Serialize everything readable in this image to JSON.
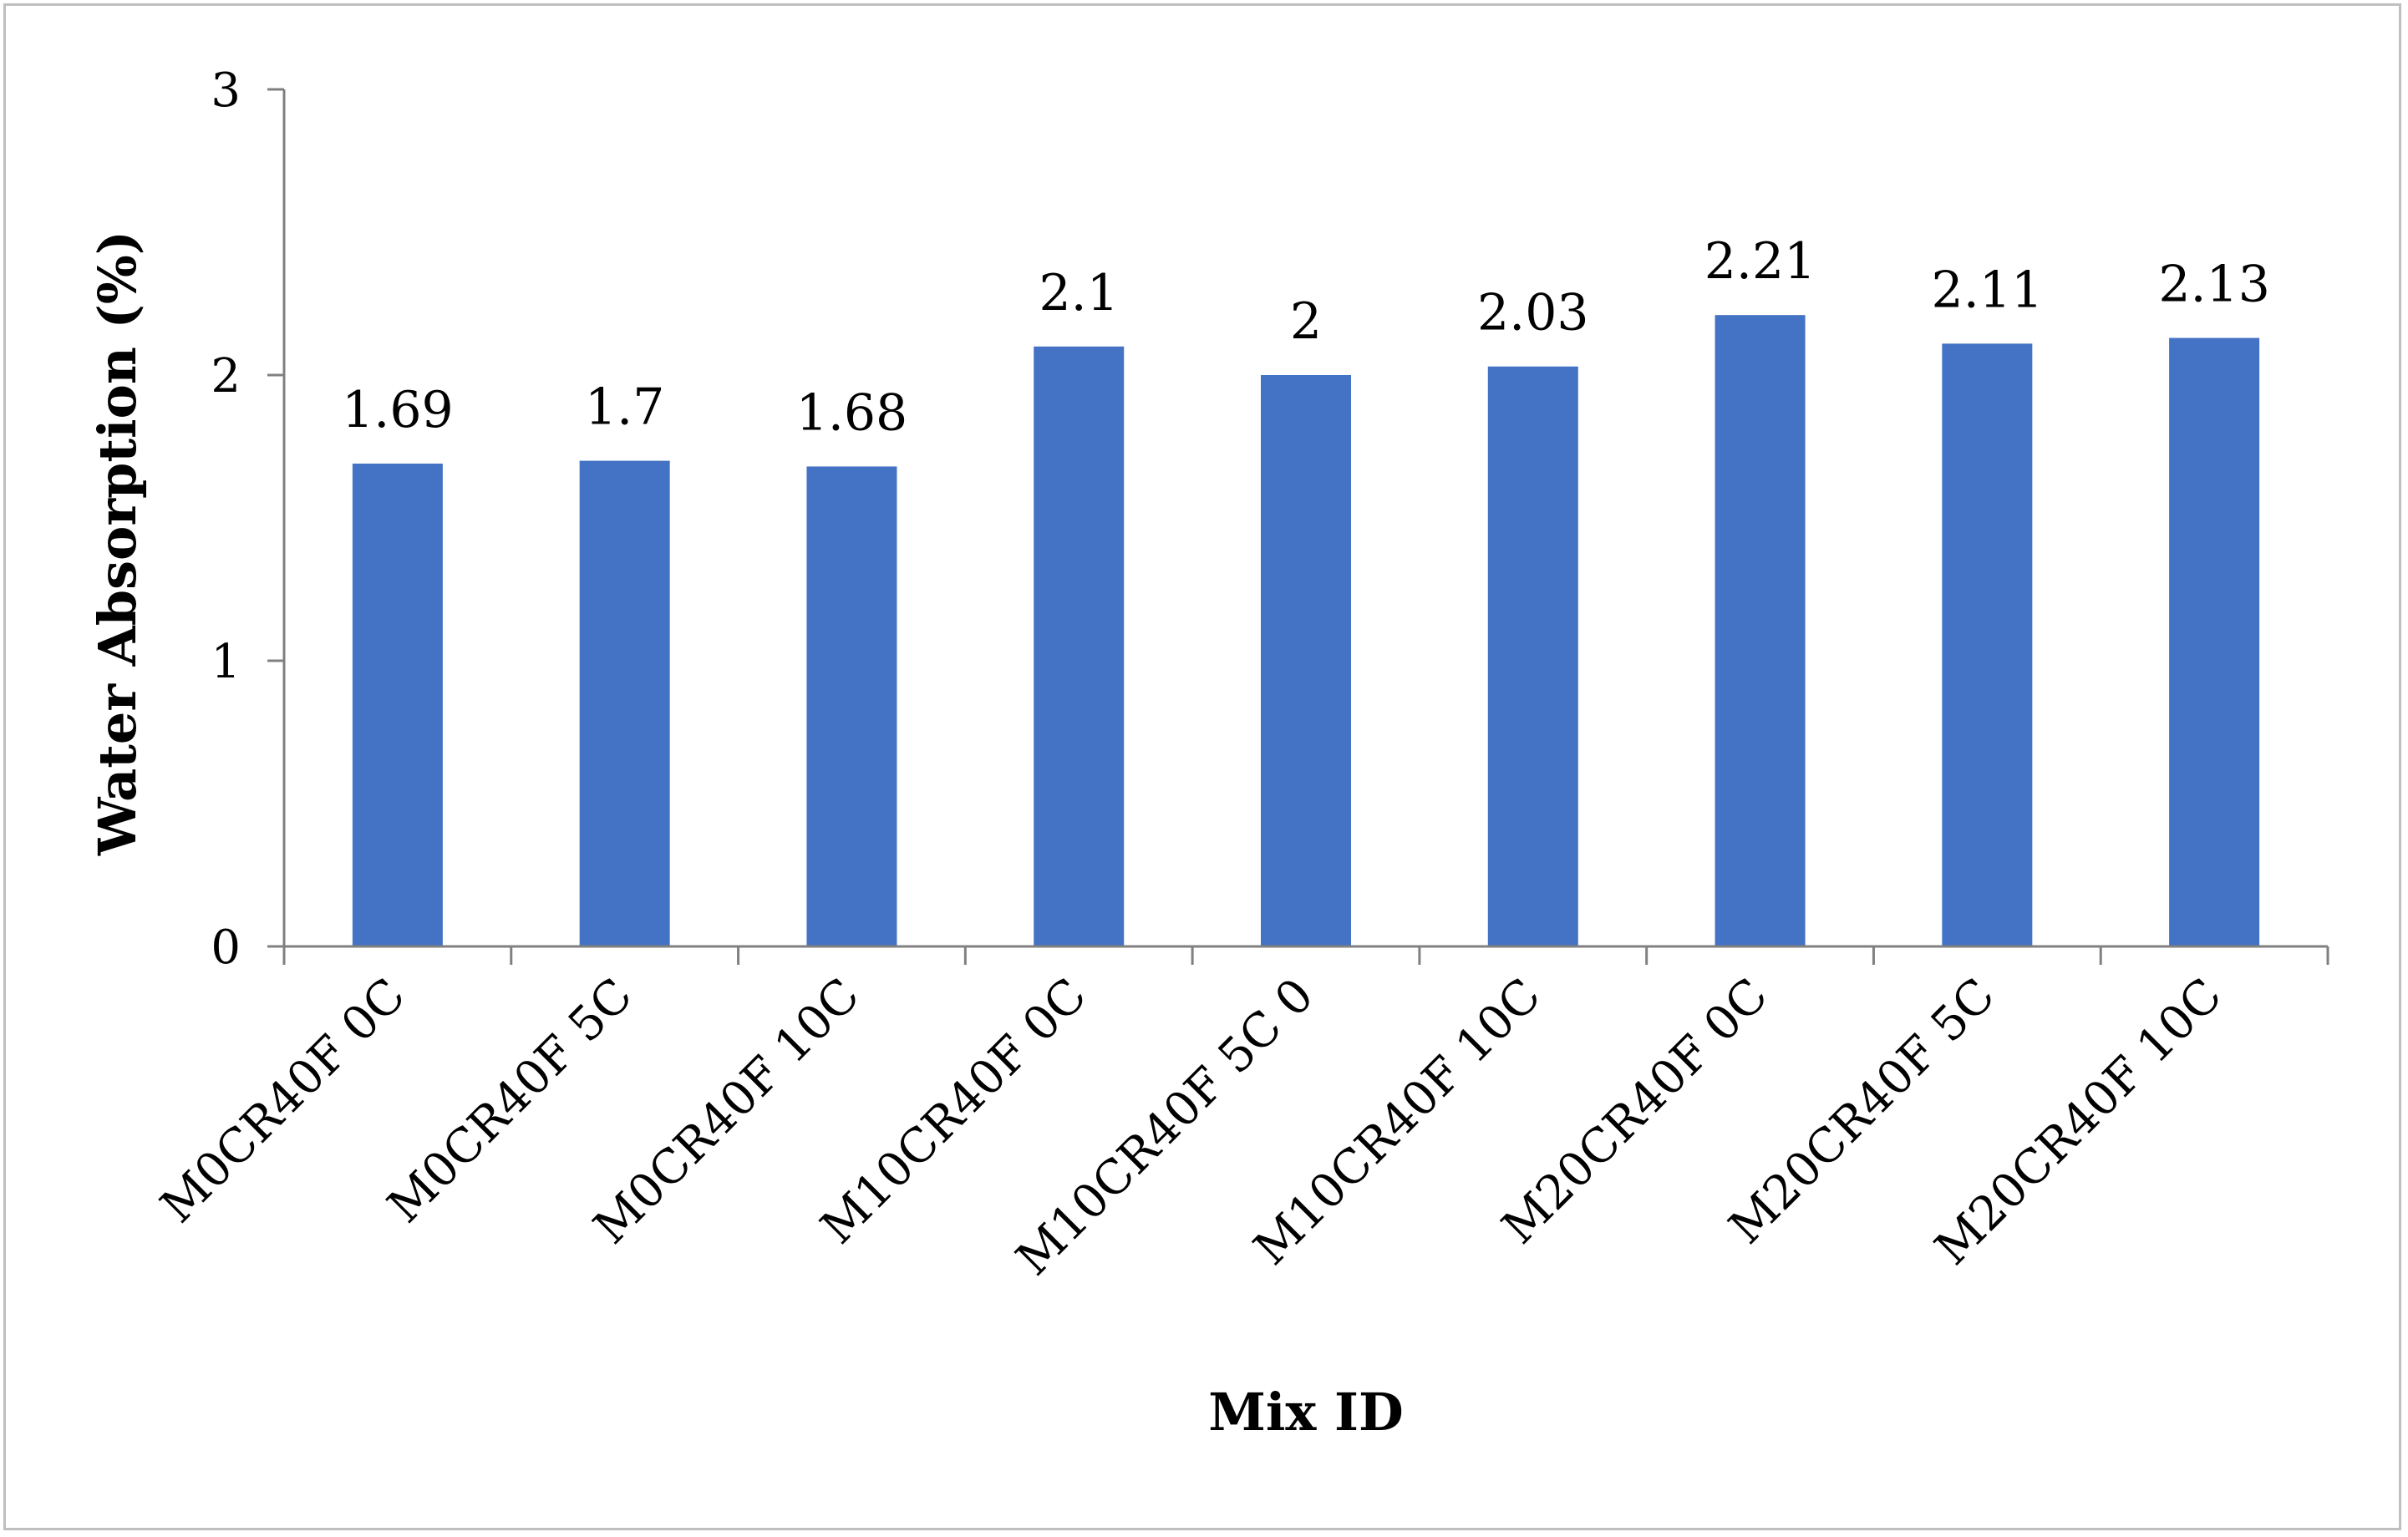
{
  "chart_data": {
    "type": "bar",
    "title": "",
    "xlabel": "Mix ID",
    "ylabel": "Water Absorption (%)",
    "categories": [
      "M0CR40F 0C",
      "M0CR40F 5C",
      "M0CR40F 10C",
      "M10CR40F 0C",
      "M10CR40F 5C 0",
      "M10CR40F 10C",
      "M20CR40F 0C",
      "M20CR40F 5C",
      "M20CR40F 10C"
    ],
    "values": [
      1.69,
      1.7,
      1.68,
      2.1,
      2,
      2.03,
      2.21,
      2.11,
      2.13
    ],
    "value_labels": [
      "1.69",
      "1.7",
      "1.68",
      "2.1",
      "2",
      "2.03",
      "2.21",
      "2.11",
      "2.13"
    ],
    "ylim": [
      0,
      3
    ],
    "yticks": [
      "0",
      "1",
      "2",
      "3"
    ],
    "grid": false,
    "legend": "none",
    "bar_color": "#4472c4",
    "axis_color": "#808080",
    "frame_color": "#bfbfbf"
  }
}
